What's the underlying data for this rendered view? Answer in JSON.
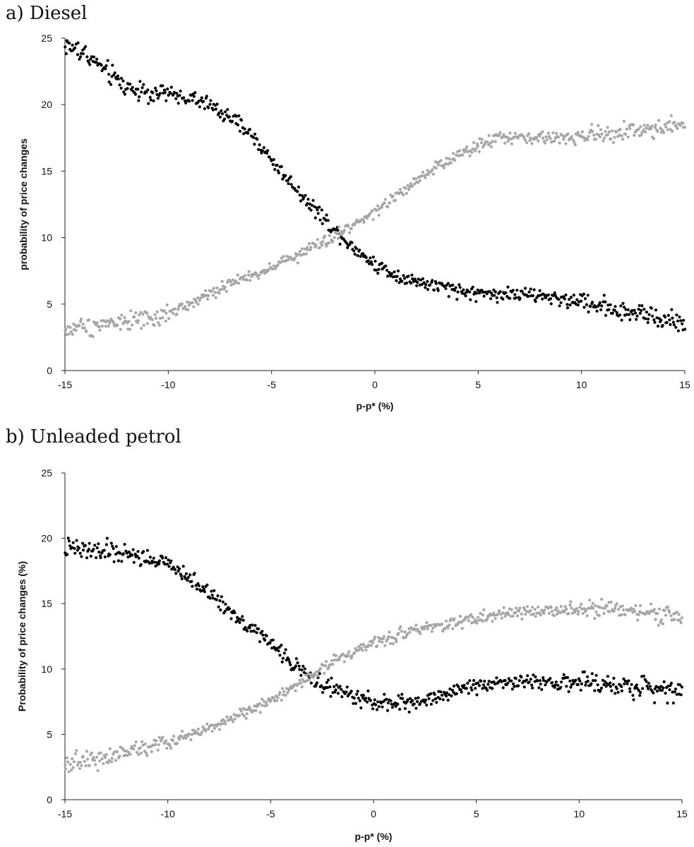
{
  "chart_data": [
    {
      "type": "scatter",
      "panel": "a) Diesel",
      "title": "",
      "xlabel": "p-p* (%)",
      "ylabel": "probability of price changes",
      "xlim": [
        -15,
        15
      ],
      "ylim": [
        0,
        25
      ],
      "x_ticks": [
        "-15",
        "-10",
        "-5",
        "0",
        "5",
        "10",
        "15"
      ],
      "y_ticks": [
        "0",
        "5",
        "10",
        "15",
        "20",
        "25"
      ],
      "grid": false,
      "legend": "none",
      "series": [
        {
          "color": "#000000",
          "x": [
            -15,
            -14,
            -13,
            -12,
            -11,
            -10,
            -9,
            -8,
            -7,
            -6,
            -5,
            -4,
            -3,
            -2,
            -1,
            0,
            1,
            2,
            3,
            4,
            5,
            6,
            7,
            8,
            9,
            10,
            11,
            12,
            13,
            14,
            15
          ],
          "values": [
            24.5,
            23.8,
            22.5,
            21.3,
            20.9,
            20.8,
            20.5,
            20.0,
            19.0,
            17.8,
            15.8,
            14.0,
            12.3,
            10.7,
            9.2,
            8.0,
            7.2,
            6.7,
            6.3,
            6.0,
            5.8,
            5.8,
            5.7,
            5.6,
            5.4,
            5.2,
            4.9,
            4.5,
            4.2,
            3.9,
            3.5
          ]
        },
        {
          "color": "#a6a6a6",
          "x": [
            -15,
            -14,
            -13,
            -12,
            -11,
            -10,
            -9,
            -8,
            -7,
            -6,
            -5,
            -4,
            -3,
            -2,
            -1,
            0,
            1,
            2,
            3,
            4,
            5,
            6,
            7,
            8,
            9,
            10,
            11,
            12,
            13,
            14,
            15
          ],
          "values": [
            3.0,
            3.3,
            3.6,
            3.7,
            3.8,
            4.3,
            5.0,
            5.8,
            6.5,
            7.1,
            7.8,
            8.5,
            9.3,
            10.0,
            11.0,
            12.0,
            13.0,
            14.2,
            15.2,
            16.2,
            17.0,
            17.5,
            17.5,
            17.5,
            17.5,
            17.6,
            17.8,
            18.0,
            18.1,
            18.3,
            18.4
          ]
        }
      ]
    },
    {
      "type": "scatter",
      "panel": "b) Unleaded petrol",
      "title": "",
      "xlabel": "p-p* (%)",
      "ylabel": "Probability of price changes (%)",
      "xlim": [
        -15,
        15
      ],
      "ylim": [
        0,
        25
      ],
      "x_ticks": [
        "-15",
        "-10",
        "-5",
        "0",
        "5",
        "10",
        "15"
      ],
      "y_ticks": [
        "0",
        "5",
        "10",
        "15",
        "20",
        "25"
      ],
      "grid": false,
      "legend": "none",
      "series": [
        {
          "color": "#000000",
          "x": [
            -15,
            -14,
            -13,
            -12,
            -11,
            -10,
            -9,
            -8,
            -7,
            -6,
            -5,
            -4,
            -3,
            -2,
            -1,
            0,
            1,
            2,
            3,
            4,
            5,
            6,
            7,
            8,
            9,
            10,
            11,
            12,
            13,
            14,
            15
          ],
          "values": [
            19.2,
            19.0,
            19.0,
            18.8,
            18.5,
            18.0,
            17.0,
            15.8,
            14.5,
            13.2,
            12.0,
            10.5,
            9.3,
            8.5,
            7.9,
            7.5,
            7.3,
            7.5,
            7.8,
            8.3,
            8.8,
            9.0,
            9.0,
            9.0,
            9.0,
            8.9,
            8.8,
            8.7,
            8.6,
            8.5,
            8.3
          ]
        },
        {
          "color": "#a6a6a6",
          "x": [
            -15,
            -14,
            -13,
            -12,
            -11,
            -10,
            -9,
            -8,
            -7,
            -6,
            -5,
            -4,
            -3,
            -2,
            -1,
            0,
            1,
            2,
            3,
            4,
            5,
            6,
            7,
            8,
            9,
            10,
            11,
            12,
            13,
            14,
            15
          ],
          "values": [
            2.8,
            3.0,
            3.3,
            3.7,
            4.0,
            4.3,
            4.9,
            5.6,
            6.2,
            6.8,
            7.6,
            8.5,
            9.5,
            10.6,
            11.3,
            12.0,
            12.5,
            13.0,
            13.3,
            13.6,
            13.9,
            14.1,
            14.3,
            14.4,
            14.6,
            14.6,
            14.5,
            14.4,
            14.3,
            14.2,
            14.1
          ]
        }
      ]
    }
  ]
}
